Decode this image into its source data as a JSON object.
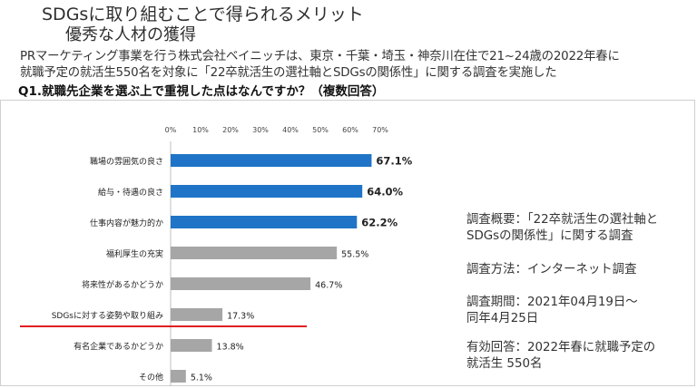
{
  "slide": {
    "title": "SDGsに取り組むことで得られるメリット",
    "subtitle": "優秀な人材の獲得",
    "intro_line1": "PRマーケティング事業を行う株式会社ベイニッチは、東京・千葉・埼玉・神奈川在住で21~24歳の2022年春に",
    "intro_line2": "就職予定の就活生550名を対象に「22卒就活生の選社軸とSDGsの関係性」に関する調査を実施した",
    "question": "Q1.就職先企業を選ぶ上で重視した点はなんですか？（複数回答）"
  },
  "survey_info": {
    "outline_line1": "調査概要：「22卒就活生の選社軸と",
    "outline_line2": "SDGsの関係性」に関する調査",
    "method": "調査方法：インターネット調査",
    "period_line1": "調査期間：2021年04月19日～",
    "period_line2": "同年4月25日",
    "respondents_line1": "有効回答：2022年春に就職予定の",
    "respondents_line2": "就活生 550名"
  },
  "chart_data": {
    "type": "bar",
    "orientation": "horizontal",
    "title": "",
    "xlabel": "",
    "ylabel": "",
    "categories": [
      "職場の雰囲気の良さ",
      "給与・待遇の良さ",
      "仕事内容が魅力的か",
      "福利厚生の充実",
      "将来性があるかどうか",
      "SDGsに対する姿勢や取り組み",
      "有名企業であるかどうか",
      "その他"
    ],
    "values": [
      67.1,
      64.0,
      62.2,
      55.5,
      46.7,
      17.3,
      13.8,
      5.1
    ],
    "value_labels": [
      "67.1%",
      "64.0%",
      "62.2%",
      "55.5%",
      "46.7%",
      "17.3%",
      "13.8%",
      "5.1%"
    ],
    "highlight_top": 3,
    "highlighted_category": "SDGsに対する姿勢や取り組み",
    "xlim": [
      0,
      70
    ],
    "xticks": [
      "0%",
      "10%",
      "20%",
      "30%",
      "40%",
      "50%",
      "60%",
      "70%"
    ],
    "grid": false,
    "legend": "none",
    "colors": {
      "top_bars": "#1f74c7",
      "other_bars": "#a6a6a6",
      "highlight_underline": "#e02020",
      "label_text": "#222222"
    }
  }
}
